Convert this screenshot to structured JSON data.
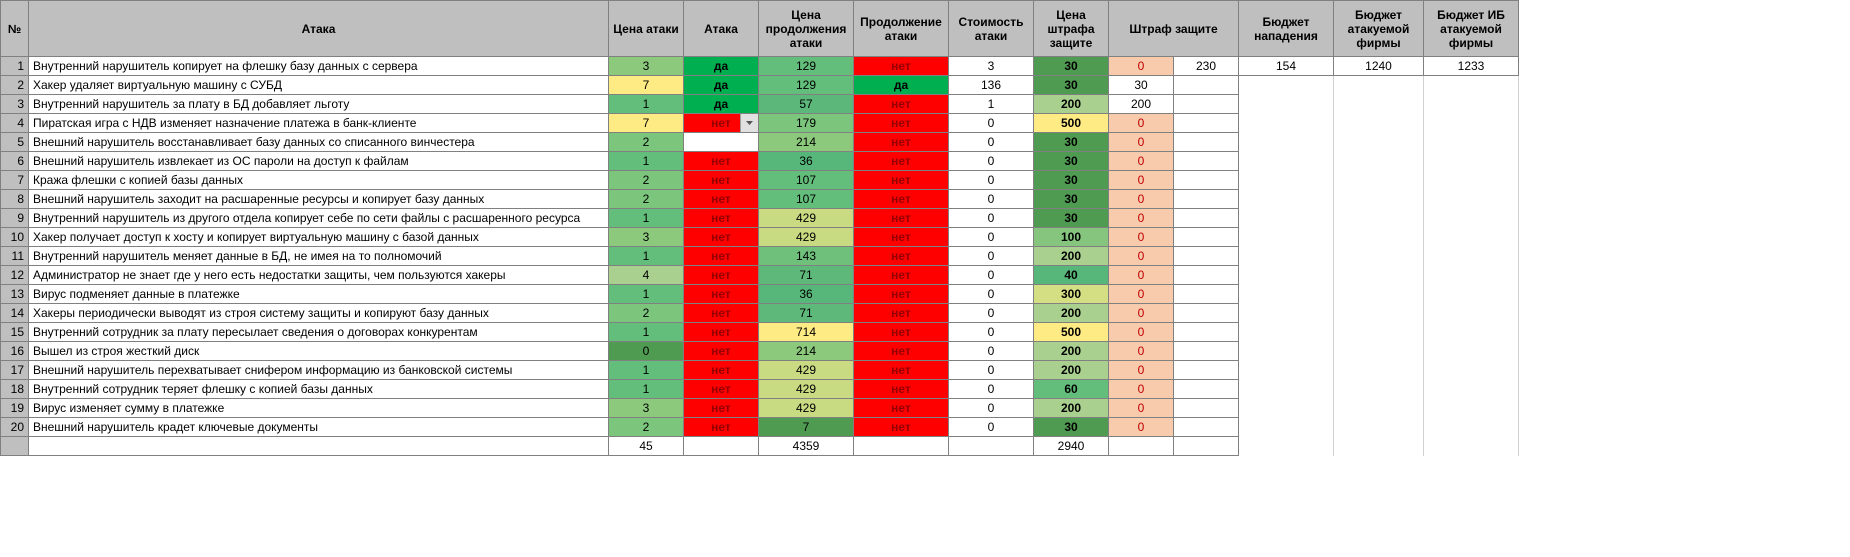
{
  "colors": {
    "header_bg": "#bfbfbf",
    "border": "#808080",
    "green_mid": "#63be7b",
    "green_dark": "#4f9b51",
    "green_lime": "#a9d08e",
    "green_bright": "#00b050",
    "yellow": "#ffeb84",
    "red": "#ff0000",
    "red_dark": "#960000",
    "pink": "#f8cbad",
    "white": "#ffffff"
  },
  "headers": {
    "num": "№",
    "attack": "Атака",
    "price": "Цена атаки",
    "do_attack": "Атака",
    "cont_price": "Цена продолжения атаки",
    "cont": "Продолжение атаки",
    "cost": "Стоимость атаки",
    "penalty_price": "Цена штрафа защите",
    "penalty": "Штраф защите",
    "budget_off": "Бюджет нападения",
    "budget_firm": "Бюджет атакуемой фирмы",
    "budget_ib": "Бюджет ИБ атакуемой фирмы"
  },
  "dropdown": {
    "active_row": 4,
    "options": [
      "да",
      "нет"
    ],
    "selected": "да"
  },
  "rows": [
    {
      "n": 1,
      "name": "Внутренний нарушитель копирует на флешку базу данных с сервера",
      "price": 3,
      "price_bg": "#8cc97c",
      "do": "да",
      "do_bg": "#00b050",
      "cont_price": 129,
      "cont_price_bg": "#63be7b",
      "cont": "нет",
      "cont_bg": "#ff0000",
      "cost": 3,
      "pen_price": 30,
      "pen_price_bg": "#4f9b51",
      "penalty": 0,
      "penalty_bg": "#f8cbad",
      "extra1": 230,
      "extra2": 154,
      "extra3": 1240,
      "extra4": 1233
    },
    {
      "n": 2,
      "name": "Хакер удаляет виртуальную машину с СУБД",
      "price": 7,
      "price_bg": "#ffeb84",
      "do": "да",
      "do_bg": "#00b050",
      "cont_price": 129,
      "cont_price_bg": "#63be7b",
      "cont": "да",
      "cont_bg": "#00b050",
      "cost": 136,
      "pen_price": 30,
      "pen_price_bg": "#4f9b51",
      "penalty": 30,
      "penalty_bg": "#ffffff"
    },
    {
      "n": 3,
      "name": "Внутренний нарушитель за плату в БД добавляет льготу",
      "price": 1,
      "price_bg": "#63be7b",
      "do": "да",
      "do_bg": "#00b050",
      "cont_price": 57,
      "cont_price_bg": "#5bb77a",
      "cont": "нет",
      "cont_bg": "#ff0000",
      "cost": 1,
      "pen_price": 200,
      "pen_price_bg": "#a9d08e",
      "penalty": 200,
      "penalty_bg": "#ffffff"
    },
    {
      "n": 4,
      "name": "Пиратская игра с НДВ изменяет назначение платежа в банк-клиенте",
      "price": 7,
      "price_bg": "#ffeb84",
      "do": "нет",
      "do_bg": "#ff0000",
      "cont_price": 179,
      "cont_price_bg": "#7bc57c",
      "cont": "нет",
      "cont_bg": "#ff0000",
      "cost": 0,
      "pen_price": 500,
      "pen_price_bg": "#ffeb84",
      "penalty": 0,
      "penalty_bg": "#f8cbad"
    },
    {
      "n": 5,
      "name": "Внешний нарушитель восстанавливает базу данных со списанного винчестера",
      "price": 2,
      "price_bg": "#7bc57c",
      "do": "",
      "do_bg": "",
      "cont_price": 214,
      "cont_price_bg": "#8cc97c",
      "cont": "нет",
      "cont_bg": "#ff0000",
      "cost": 0,
      "pen_price": 30,
      "pen_price_bg": "#4f9b51",
      "penalty": 0,
      "penalty_bg": "#f8cbad"
    },
    {
      "n": 6,
      "name": "Внешний нарушитель извлекает из ОС пароли на доступ к файлам",
      "price": 1,
      "price_bg": "#63be7b",
      "do": "нет",
      "do_bg": "#ff0000",
      "cont_price": 36,
      "cont_price_bg": "#57b679",
      "cont": "нет",
      "cont_bg": "#ff0000",
      "cost": 0,
      "pen_price": 30,
      "pen_price_bg": "#4f9b51",
      "penalty": 0,
      "penalty_bg": "#f8cbad"
    },
    {
      "n": 7,
      "name": "Кража флешки с копией базы данных",
      "price": 2,
      "price_bg": "#7bc57c",
      "do": "нет",
      "do_bg": "#ff0000",
      "cont_price": 107,
      "cont_price_bg": "#63be7b",
      "cont": "нет",
      "cont_bg": "#ff0000",
      "cost": 0,
      "pen_price": 30,
      "pen_price_bg": "#4f9b51",
      "penalty": 0,
      "penalty_bg": "#f8cbad"
    },
    {
      "n": 8,
      "name": "Внешний нарушитель заходит на расшаренные ресурсы и копирует базу данных",
      "price": 2,
      "price_bg": "#7bc57c",
      "do": "нет",
      "do_bg": "#ff0000",
      "cont_price": 107,
      "cont_price_bg": "#63be7b",
      "cont": "нет",
      "cont_bg": "#ff0000",
      "cost": 0,
      "pen_price": 30,
      "pen_price_bg": "#4f9b51",
      "penalty": 0,
      "penalty_bg": "#f8cbad"
    },
    {
      "n": 9,
      "name": "Внутренний нарушитель из другого отдела копирует себе по сети файлы с расшаренного ресурса",
      "price": 1,
      "price_bg": "#63be7b",
      "do": "нет",
      "do_bg": "#ff0000",
      "cont_price": 429,
      "cont_price_bg": "#c8da82",
      "cont": "нет",
      "cont_bg": "#ff0000",
      "cost": 0,
      "pen_price": 30,
      "pen_price_bg": "#4f9b51",
      "penalty": 0,
      "penalty_bg": "#f8cbad"
    },
    {
      "n": 10,
      "name": "Хакер получает доступ к хосту и копирует виртуальную машину с базой данных",
      "price": 3,
      "price_bg": "#8cc97c",
      "do": "нет",
      "do_bg": "#ff0000",
      "cont_price": 429,
      "cont_price_bg": "#c8da82",
      "cont": "нет",
      "cont_bg": "#ff0000",
      "cost": 0,
      "pen_price": 100,
      "pen_price_bg": "#86c57e",
      "penalty": 0,
      "penalty_bg": "#f8cbad"
    },
    {
      "n": 11,
      "name": "Внутренний нарушитель меняет данные в БД, не имея на то полномочий",
      "price": 1,
      "price_bg": "#63be7b",
      "do": "нет",
      "do_bg": "#ff0000",
      "cont_price": 143,
      "cont_price_bg": "#6fc07b",
      "cont": "нет",
      "cont_bg": "#ff0000",
      "cost": 0,
      "pen_price": 200,
      "pen_price_bg": "#a9d08e",
      "penalty": 0,
      "penalty_bg": "#f8cbad"
    },
    {
      "n": 12,
      "name": "Администратор не знает где у него есть недостатки защиты, чем пользуются хакеры",
      "price": 4,
      "price_bg": "#a9d08e",
      "do": "нет",
      "do_bg": "#ff0000",
      "cont_price": 71,
      "cont_price_bg": "#5db87a",
      "cont": "нет",
      "cont_bg": "#ff0000",
      "cost": 0,
      "pen_price": 40,
      "pen_price_bg": "#57b679",
      "penalty": 0,
      "penalty_bg": "#f8cbad"
    },
    {
      "n": 13,
      "name": "Вирус подменяет данные в платежке",
      "price": 1,
      "price_bg": "#63be7b",
      "do": "нет",
      "do_bg": "#ff0000",
      "cont_price": 36,
      "cont_price_bg": "#57b679",
      "cont": "нет",
      "cont_bg": "#ff0000",
      "cost": 0,
      "pen_price": 300,
      "pen_price_bg": "#d4df84",
      "penalty": 0,
      "penalty_bg": "#f8cbad"
    },
    {
      "n": 14,
      "name": "Хакеры периодически выводят из строя систему защиты и копируют базу данных",
      "price": 2,
      "price_bg": "#7bc57c",
      "do": "нет",
      "do_bg": "#ff0000",
      "cont_price": 71,
      "cont_price_bg": "#5db87a",
      "cont": "нет",
      "cont_bg": "#ff0000",
      "cost": 0,
      "pen_price": 200,
      "pen_price_bg": "#a9d08e",
      "penalty": 0,
      "penalty_bg": "#f8cbad"
    },
    {
      "n": 15,
      "name": "Внутренний сотрудник за плату пересылает сведения о договорах конкурентам",
      "price": 1,
      "price_bg": "#63be7b",
      "do": "нет",
      "do_bg": "#ff0000",
      "cont_price": 714,
      "cont_price_bg": "#ffeb84",
      "cont": "нет",
      "cont_bg": "#ff0000",
      "cost": 0,
      "pen_price": 500,
      "pen_price_bg": "#ffeb84",
      "penalty": 0,
      "penalty_bg": "#f8cbad"
    },
    {
      "n": 16,
      "name": "Вышел из строя жесткий диск",
      "price": 0,
      "price_bg": "#4f9b51",
      "do": "нет",
      "do_bg": "#ff0000",
      "cont_price": 214,
      "cont_price_bg": "#8cc97c",
      "cont": "нет",
      "cont_bg": "#ff0000",
      "cost": 0,
      "pen_price": 200,
      "pen_price_bg": "#a9d08e",
      "penalty": 0,
      "penalty_bg": "#f8cbad"
    },
    {
      "n": 17,
      "name": "Внешний нарушитель перехватывает снифером информацию из банковской системы",
      "price": 1,
      "price_bg": "#63be7b",
      "do": "нет",
      "do_bg": "#ff0000",
      "cont_price": 429,
      "cont_price_bg": "#c8da82",
      "cont": "нет",
      "cont_bg": "#ff0000",
      "cost": 0,
      "pen_price": 200,
      "pen_price_bg": "#a9d08e",
      "penalty": 0,
      "penalty_bg": "#f8cbad"
    },
    {
      "n": 18,
      "name": "Внутренний сотрудник теряет флешку с копией базы данных",
      "price": 1,
      "price_bg": "#63be7b",
      "do": "нет",
      "do_bg": "#ff0000",
      "cont_price": 429,
      "cont_price_bg": "#c8da82",
      "cont": "нет",
      "cont_bg": "#ff0000",
      "cost": 0,
      "pen_price": 60,
      "pen_price_bg": "#63be7b",
      "penalty": 0,
      "penalty_bg": "#f8cbad"
    },
    {
      "n": 19,
      "name": "Вирус изменяет сумму в платежке",
      "price": 3,
      "price_bg": "#8cc97c",
      "do": "нет",
      "do_bg": "#ff0000",
      "cont_price": 429,
      "cont_price_bg": "#c8da82",
      "cont": "нет",
      "cont_bg": "#ff0000",
      "cost": 0,
      "pen_price": 200,
      "pen_price_bg": "#a9d08e",
      "penalty": 0,
      "penalty_bg": "#f8cbad"
    },
    {
      "n": 20,
      "name": "Внешний нарушитель крадет ключевые документы",
      "price": 2,
      "price_bg": "#7bc57c",
      "do": "нет",
      "do_bg": "#ff0000",
      "cont_price": 7,
      "cont_price_bg": "#4f9b51",
      "cont": "нет",
      "cont_bg": "#ff0000",
      "cost": 0,
      "pen_price": 30,
      "pen_price_bg": "#4f9b51",
      "penalty": 0,
      "penalty_bg": "#f8cbad"
    }
  ],
  "totals": {
    "price": 45,
    "cont_price": 4359,
    "pen_price": 2940
  },
  "col_widths": {
    "num": 28,
    "attack": 580,
    "price": 75,
    "do": 75,
    "cont_price": 95,
    "cont": 95,
    "cost": 85,
    "pen_price": 75,
    "penalty1": 65,
    "penalty2": 65,
    "budget_off": 95,
    "budget_firm": 90,
    "budget_ib": 95
  }
}
